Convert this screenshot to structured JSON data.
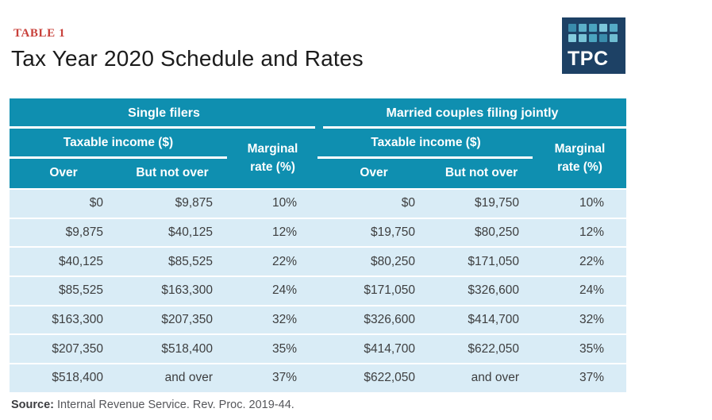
{
  "header": {
    "table_label": "TABLE 1",
    "title": "Tax Year 2020 Schedule and Rates"
  },
  "logo": {
    "text": "TPC",
    "squares": [
      "#3a8cab",
      "#5cb0c9",
      "#4ba4bf",
      "#7cc6da",
      "#55abc6",
      "#84cbdd",
      "#77c2d6",
      "#4ba4bf",
      "#3a8cab",
      "#6fbdd2"
    ]
  },
  "table_headers": {
    "group_left": "Single filers",
    "group_right": "Married couples filing jointly",
    "taxable_income": "Taxable income ($)",
    "marginal_line1": "Marginal",
    "marginal_line2": "rate (%)",
    "over": "Over",
    "but_not_over": "But not over"
  },
  "chart_data": {
    "type": "table",
    "label": "TABLE 1",
    "title": "Tax Year 2020 Schedule and Rates",
    "sections": [
      {
        "name": "Single filers",
        "columns": [
          "Over",
          "But not over",
          "Marginal rate (%)"
        ],
        "rows": [
          [
            "$0",
            "$9,875",
            "10%"
          ],
          [
            "$9,875",
            "$40,125",
            "12%"
          ],
          [
            "$40,125",
            "$85,525",
            "22%"
          ],
          [
            "$85,525",
            "$163,300",
            "24%"
          ],
          [
            "$163,300",
            "$207,350",
            "32%"
          ],
          [
            "$207,350",
            "$518,400",
            "35%"
          ],
          [
            "$518,400",
            "and over",
            "37%"
          ]
        ]
      },
      {
        "name": "Married couples filing jointly",
        "columns": [
          "Over",
          "But not over",
          "Marginal rate (%)"
        ],
        "rows": [
          [
            "$0",
            "$19,750",
            "10%"
          ],
          [
            "$19,750",
            "$80,250",
            "12%"
          ],
          [
            "$80,250",
            "$171,050",
            "22%"
          ],
          [
            "$171,050",
            "$326,600",
            "24%"
          ],
          [
            "$326,600",
            "$414,700",
            "32%"
          ],
          [
            "$414,700",
            "$622,050",
            "35%"
          ],
          [
            "$622,050",
            "and over",
            "37%"
          ]
        ]
      }
    ],
    "source": "Internal Revenue Service. Rev. Proc. 2019-44."
  },
  "footer": {
    "source_label": "Source:",
    "source_text": "Internal Revenue Service. Rev. Proc. 2019-44."
  },
  "colors": {
    "teal": "#0f8fb0",
    "row_bg": "#d9ecf6",
    "label_red": "#c8403a",
    "logo_navy": "#1d4165",
    "text_dark": "#3d3e3f",
    "title_black": "#1b1b1b"
  }
}
